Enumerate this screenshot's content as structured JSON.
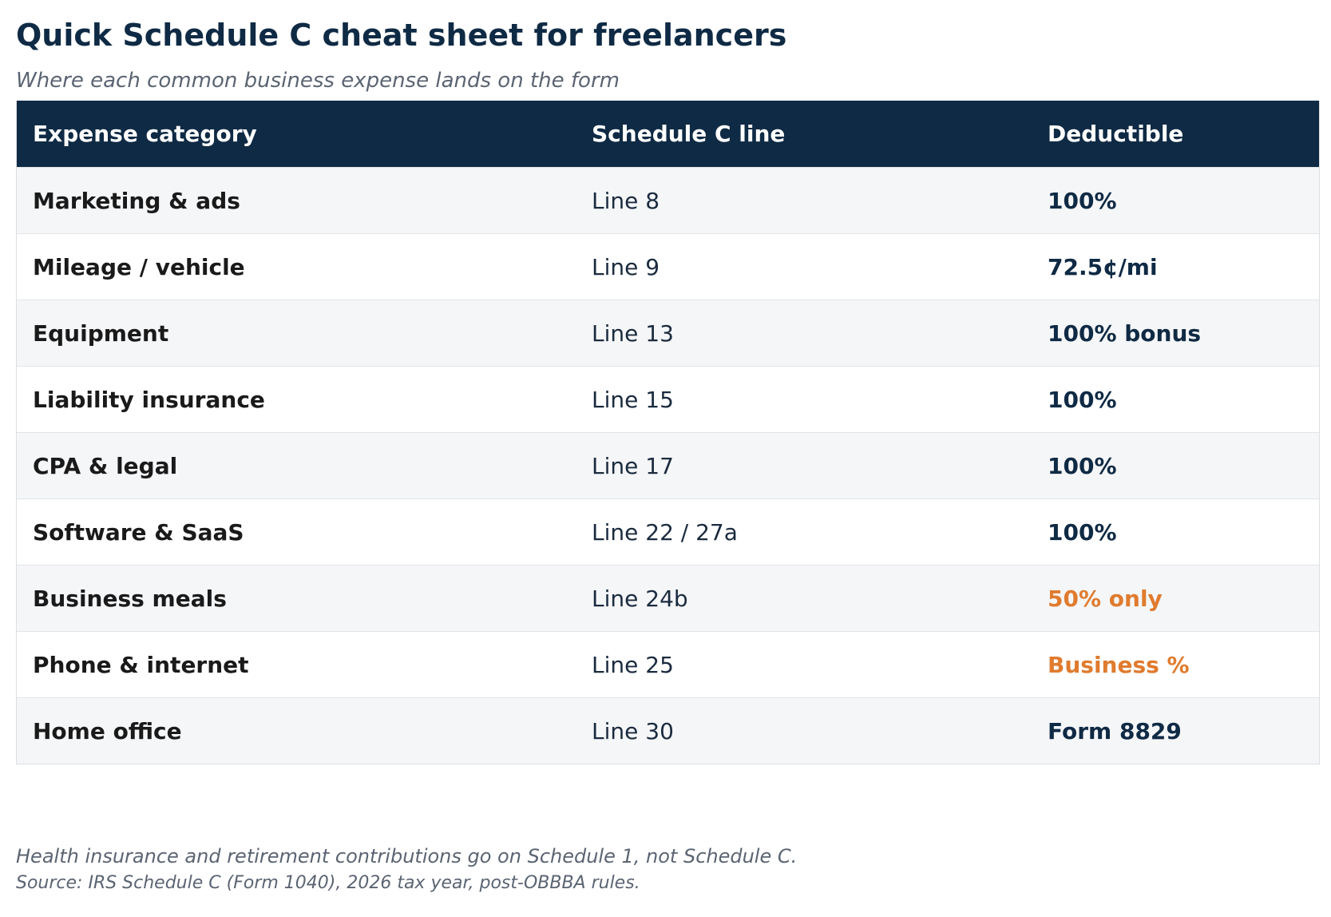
{
  "title": "Quick Schedule C cheat sheet for freelancers",
  "subtitle": "Where each common business expense lands on the form",
  "columns": [
    "Expense category",
    "Schedule C line",
    "Deductible"
  ],
  "rows": [
    {
      "category": "Marketing & ads",
      "line": "Line 8",
      "deductible": "100%",
      "highlight": false
    },
    {
      "category": "Mileage / vehicle",
      "line": "Line 9",
      "deductible": "72.5¢/mi",
      "highlight": false
    },
    {
      "category": "Equipment",
      "line": "Line 13",
      "deductible": "100% bonus",
      "highlight": false
    },
    {
      "category": "Liability insurance",
      "line": "Line 15",
      "deductible": "100%",
      "highlight": false
    },
    {
      "category": "CPA & legal",
      "line": "Line 17",
      "deductible": "100%",
      "highlight": false
    },
    {
      "category": "Software & SaaS",
      "line": "Line 22 / 27a",
      "deductible": "100%",
      "highlight": false
    },
    {
      "category": "Business meals",
      "line": "Line 24b",
      "deductible": "50% only",
      "highlight": true
    },
    {
      "category": "Phone & internet",
      "line": "Line 25",
      "deductible": "Business %",
      "highlight": true
    },
    {
      "category": "Home office",
      "line": "Line 30",
      "deductible": "Form 8829",
      "highlight": false
    }
  ],
  "notes": [
    "Health insurance and retirement contributions go on Schedule 1, not Schedule C.",
    "Source: IRS Schedule C (Form 1040), 2026 tax year, post-OBBBA rules."
  ],
  "colors": {
    "header_bg": "#0f2a44",
    "accent_warning": "#e07b2e",
    "row_alt": "#f5f6f8"
  }
}
